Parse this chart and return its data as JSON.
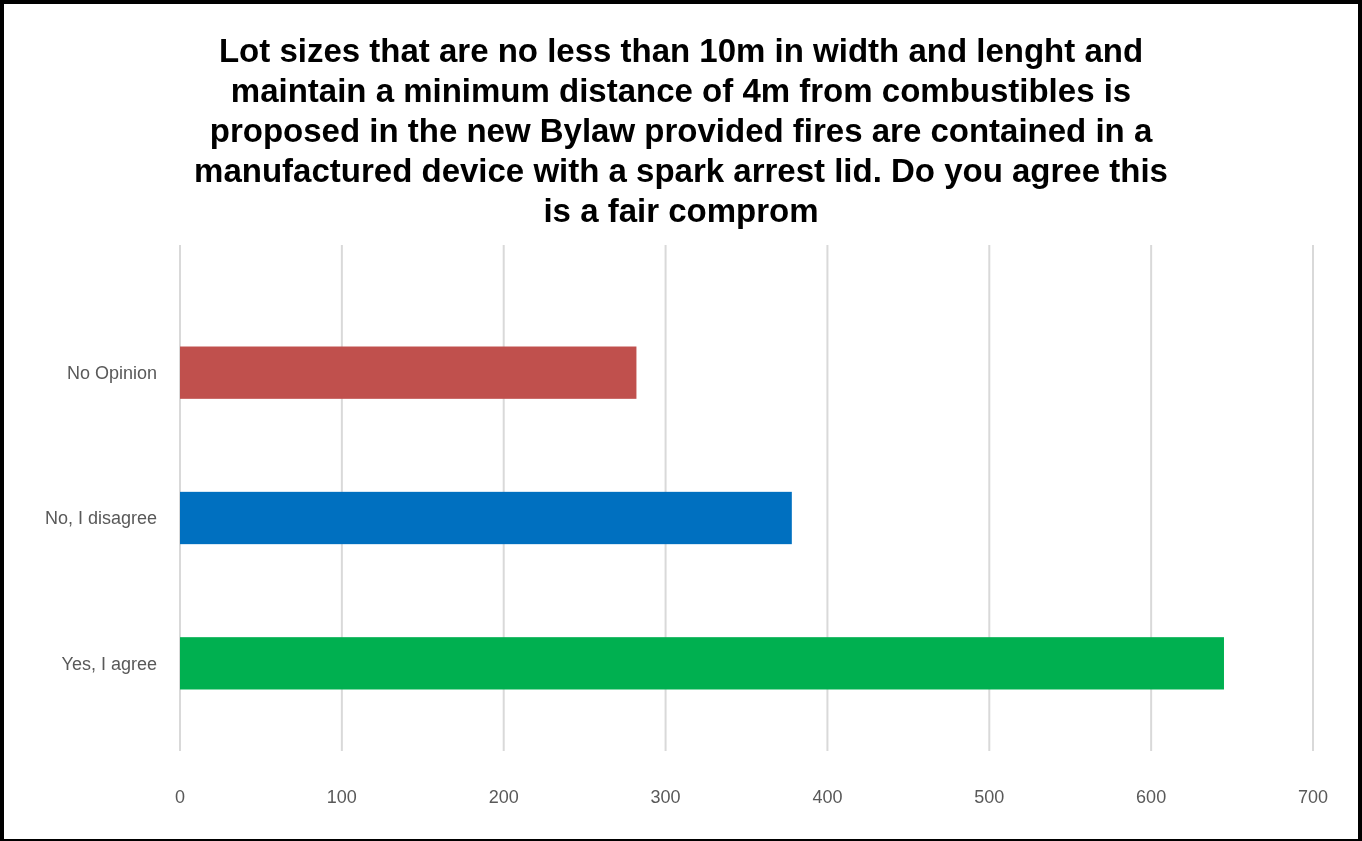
{
  "chart_data": {
    "type": "bar",
    "orientation": "horizontal",
    "title": "Lot sizes that are no less than 10m in width and lenght and maintain a minimum distance of 4m from combustibles is proposed in the new Bylaw provided fires are contained in a manufactured device with a spark arrest lid. Do you agree this is a fair comprom",
    "categories": [
      "No Opinion",
      "No, I disagree",
      "Yes, I agree"
    ],
    "values": [
      282,
      378,
      645
    ],
    "colors": [
      "#c0504d",
      "#0070c0",
      "#00b050"
    ],
    "xlim": [
      0,
      700
    ],
    "xticks": [
      0,
      100,
      200,
      300,
      400,
      500,
      600,
      700
    ],
    "grid": "x"
  }
}
